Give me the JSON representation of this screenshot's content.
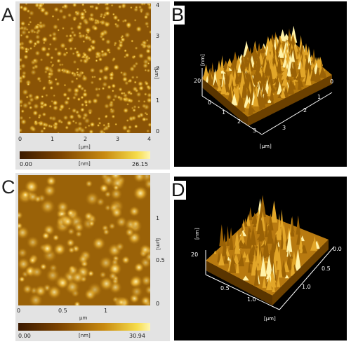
{
  "panels": {
    "a": {
      "letter": "A",
      "x_ticks": [
        "0",
        "1",
        "2",
        "3",
        "4"
      ],
      "y_ticks": [
        "4",
        "3",
        "2",
        "1",
        "0"
      ],
      "x_unit": "[µm]",
      "y_unit": "[µm]",
      "colorbar_min": "0.00",
      "colorbar_unit": "[nm]",
      "colorbar_max": "26.15"
    },
    "b": {
      "letter": "B",
      "z_unit": "[nm]",
      "z_tick": "20",
      "front_ticks": [
        "0",
        "1",
        "2",
        "3"
      ],
      "side_ticks": [
        "0",
        "1",
        "2",
        "3"
      ],
      "xy_unit": "[µm]"
    },
    "c": {
      "letter": "C",
      "x_ticks": [
        "0",
        "0.5",
        "1"
      ],
      "y_ticks": [
        "1",
        "0.5",
        "0"
      ],
      "x_unit": "µm",
      "y_unit": "[µm]",
      "colorbar_min": "0.00",
      "colorbar_unit": "[nm]",
      "colorbar_max": "30.94"
    },
    "d": {
      "letter": "D",
      "z_unit": "[nm]",
      "z_tick": "20",
      "front_ticks": [
        "0.5",
        "1.0"
      ],
      "side_ticks": [
        "0.0",
        "0.5",
        "1.0"
      ],
      "xy_unit": "[µm]"
    }
  }
}
